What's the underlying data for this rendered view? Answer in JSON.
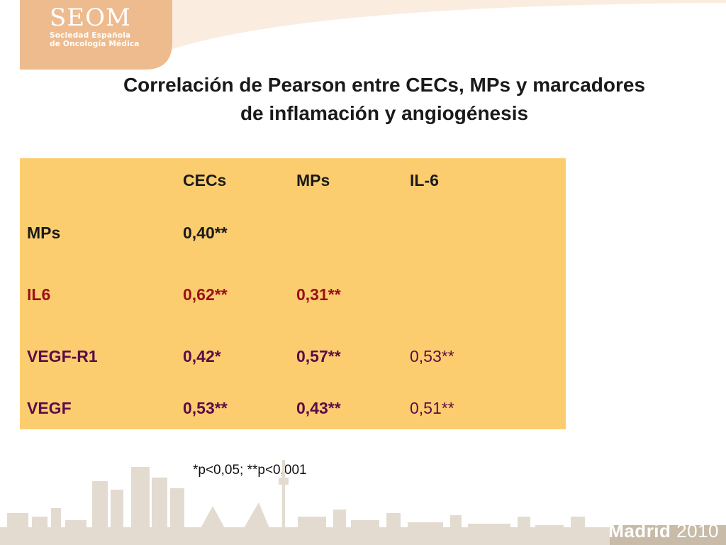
{
  "brand": {
    "name": "SEOM",
    "subtitle_line1": "Sociedad Española",
    "subtitle_line2": "de Oncología Médica"
  },
  "title": {
    "line1": "Correlación de Pearson entre CECs, MPs y marcadores",
    "line2": "de inflamación y angiogénesis"
  },
  "table": {
    "headers": [
      "",
      "CECs",
      "MPs",
      "IL-6"
    ],
    "rows": [
      {
        "label": "MPs",
        "values": [
          "0,40**",
          "",
          ""
        ],
        "color": "#1a1a1a"
      },
      {
        "label": "IL6",
        "values": [
          "0,62**",
          "0,31**",
          ""
        ],
        "color": "#9b1018"
      },
      {
        "label": "VEGF-R1",
        "values": [
          "0,42*",
          "0,57**",
          "0,53**"
        ],
        "color": "#5a0c48"
      },
      {
        "label": "VEGF",
        "values": [
          "0,53**",
          "0,43**",
          "0,51**"
        ],
        "color": "#5a0c48"
      }
    ],
    "background": "#fccd6f"
  },
  "footnote": "*p<0,05; **p<0,001",
  "footer": {
    "city": "Madrid",
    "year": "2010"
  }
}
